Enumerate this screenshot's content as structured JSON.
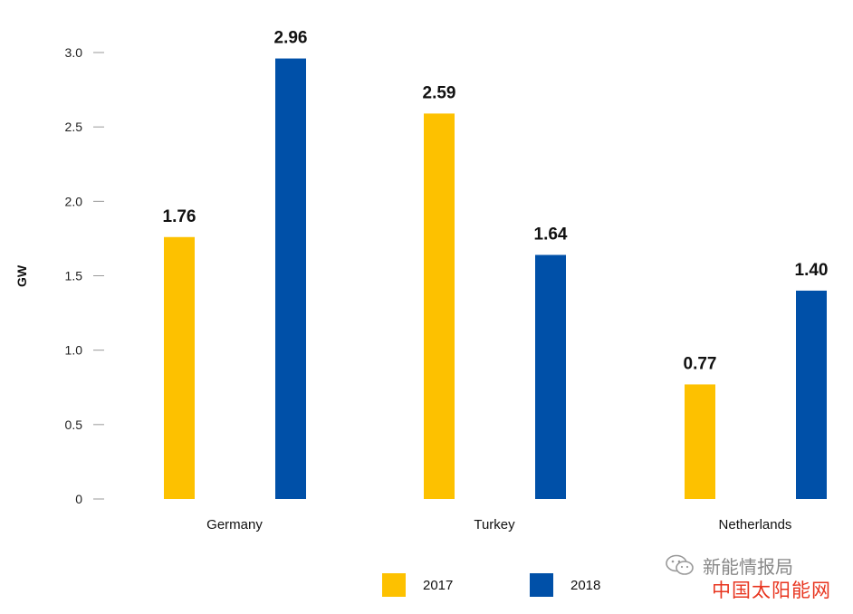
{
  "chart_data": {
    "type": "bar",
    "categories": [
      "Germany",
      "Turkey",
      "Netherlands"
    ],
    "series": [
      {
        "name": "2017",
        "values": [
          1.76,
          2.59,
          0.77
        ],
        "color": "#FDC100"
      },
      {
        "name": "2018",
        "values": [
          2.96,
          1.64,
          1.4
        ],
        "color": "#0050A8"
      }
    ],
    "value_labels": [
      [
        "1.76",
        "2.59",
        "0.77"
      ],
      [
        "2.96",
        "1.64",
        "1.40"
      ]
    ],
    "ylabel": "GW",
    "ylim": [
      0,
      3.0
    ],
    "yticks": [
      "0",
      "0.5",
      "1.0",
      "1.5",
      "2.0",
      "2.5",
      "3.0"
    ],
    "ytick_values": [
      0,
      0.5,
      1.0,
      1.5,
      2.0,
      2.5,
      3.0
    ],
    "grid": false,
    "legend_position": "bottom-center"
  },
  "watermark": {
    "line1": "新能情报局",
    "line2": "中国太阳能网",
    "icon": "wechat-icon"
  }
}
